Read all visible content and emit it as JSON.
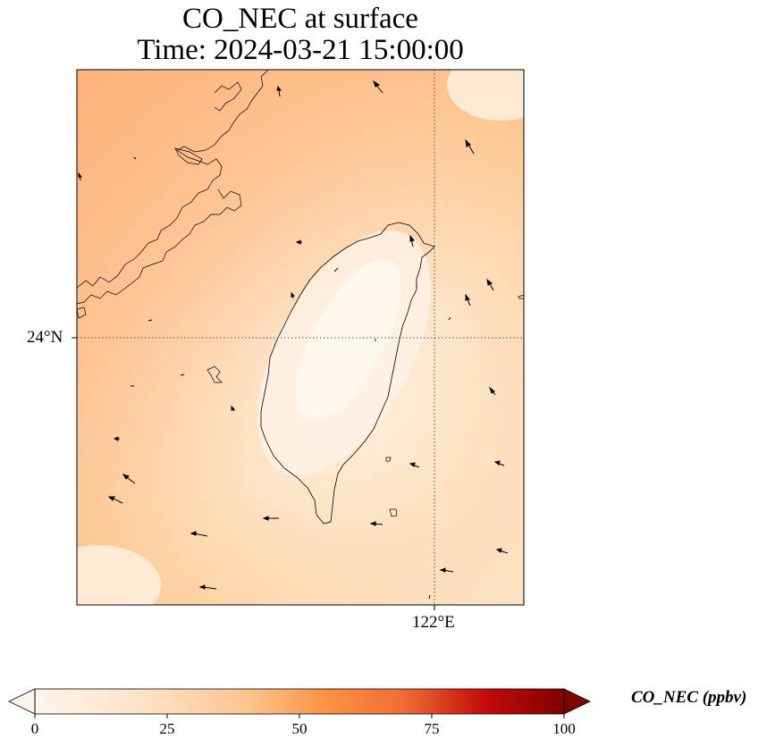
{
  "title": {
    "line1": "CO_NEC at surface",
    "line2": "Time: 2024-03-21 15:00:00"
  },
  "map": {
    "lat_label": "24°N",
    "lon_label": "122°E",
    "frame_color": "#000000",
    "gridline_style": "dotted"
  },
  "colorbar": {
    "label": "CO_NEC (ppbv)",
    "ticks": [
      "0",
      "25",
      "50",
      "75",
      "100"
    ],
    "range": [
      0,
      100
    ],
    "extend": "both",
    "colormap": [
      "#fff5eb",
      "#fdd9b4",
      "#fda762",
      "#f3701b",
      "#c54102",
      "#7f2704"
    ]
  }
}
